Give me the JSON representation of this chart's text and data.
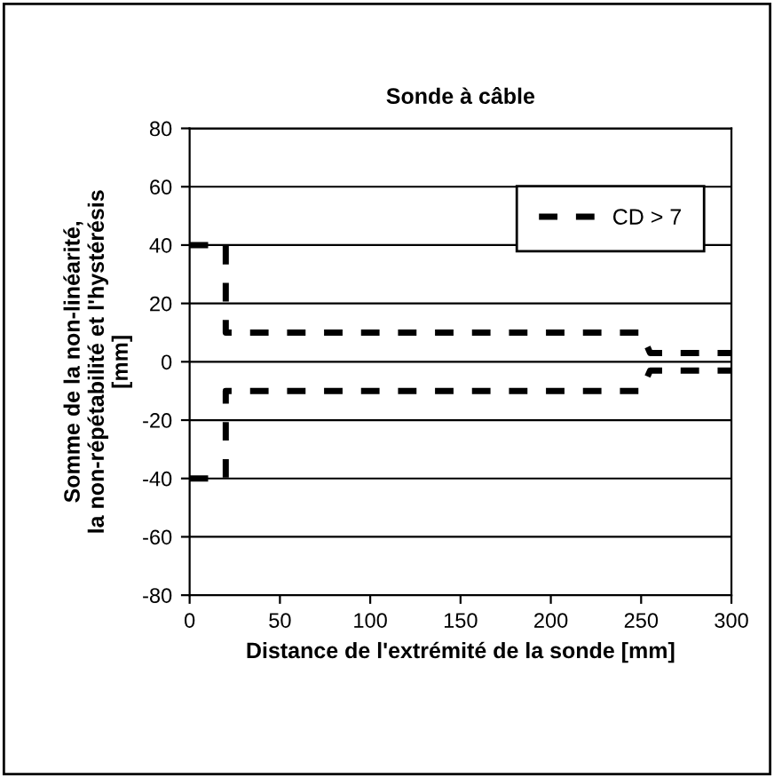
{
  "chart_data": {
    "type": "line",
    "title": "Sonde à câble",
    "xlabel": "Distance de l'extrémité de la sonde [mm]",
    "ylabel": "Somme de la non-linéarité,\nla non-répétabilité et l'hystérésis\n[mm]",
    "series": [
      {
        "name": "CD > 7",
        "color": "#000000",
        "x": [
          0,
          20,
          20,
          250,
          255,
          300
        ],
        "values": [
          40,
          40,
          10,
          10,
          3,
          3
        ]
      },
      {
        "color": "#000000",
        "x": [
          0,
          20,
          20,
          250,
          255,
          300
        ],
        "values": [
          -40,
          -40,
          -10,
          -10,
          -3,
          -3
        ]
      }
    ],
    "xlim": [
      0,
      300
    ],
    "xticks": [
      0,
      50,
      100,
      150,
      200,
      250,
      300
    ],
    "ylim": [
      -80,
      80
    ],
    "yticks": [
      -80,
      -60,
      -40,
      -20,
      0,
      20,
      40,
      60,
      80
    ],
    "grid": "y",
    "legend": "top right",
    "line_style": "dashed",
    "marker": "none"
  }
}
